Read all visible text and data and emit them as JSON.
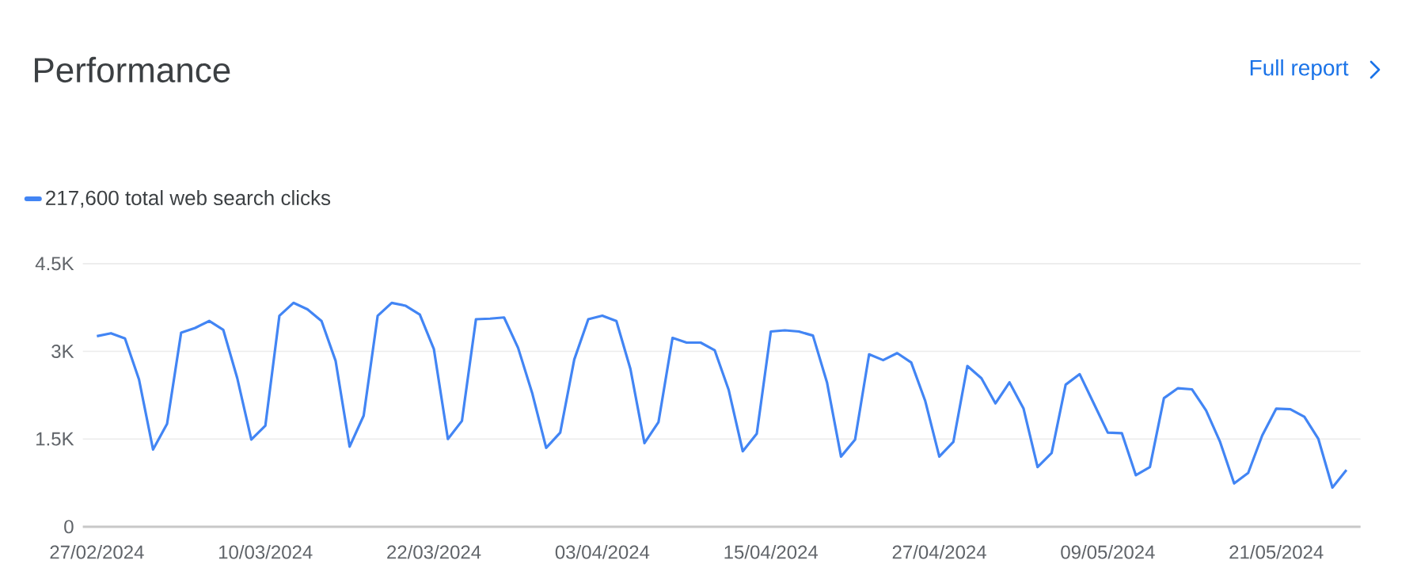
{
  "chart_data": {
    "type": "line",
    "title": "Performance",
    "annotations": [
      "Full report"
    ],
    "x": [
      "2024-02-27",
      "2024-02-28",
      "2024-02-29",
      "2024-03-01",
      "2024-03-02",
      "2024-03-03",
      "2024-03-04",
      "2024-03-05",
      "2024-03-06",
      "2024-03-07",
      "2024-03-08",
      "2024-03-09",
      "2024-03-10",
      "2024-03-11",
      "2024-03-12",
      "2024-03-13",
      "2024-03-14",
      "2024-03-15",
      "2024-03-16",
      "2024-03-17",
      "2024-03-18",
      "2024-03-19",
      "2024-03-20",
      "2024-03-21",
      "2024-03-22",
      "2024-03-23",
      "2024-03-24",
      "2024-03-25",
      "2024-03-26",
      "2024-03-27",
      "2024-03-28",
      "2024-03-29",
      "2024-03-30",
      "2024-03-31",
      "2024-04-01",
      "2024-04-02",
      "2024-04-03",
      "2024-04-04",
      "2024-04-05",
      "2024-04-06",
      "2024-04-07",
      "2024-04-08",
      "2024-04-09",
      "2024-04-10",
      "2024-04-11",
      "2024-04-12",
      "2024-04-13",
      "2024-04-14",
      "2024-04-15",
      "2024-04-16",
      "2024-04-17",
      "2024-04-18",
      "2024-04-19",
      "2024-04-20",
      "2024-04-21",
      "2024-04-22",
      "2024-04-23",
      "2024-04-24",
      "2024-04-25",
      "2024-04-26",
      "2024-04-27",
      "2024-04-28",
      "2024-04-29",
      "2024-04-30",
      "2024-05-01",
      "2024-05-02",
      "2024-05-03",
      "2024-05-04",
      "2024-05-05",
      "2024-05-06",
      "2024-05-07",
      "2024-05-08",
      "2024-05-09",
      "2024-05-10",
      "2024-05-11",
      "2024-05-12",
      "2024-05-13",
      "2024-05-14",
      "2024-05-15",
      "2024-05-16",
      "2024-05-17",
      "2024-05-18",
      "2024-05-19",
      "2024-05-20",
      "2024-05-21",
      "2024-05-22",
      "2024-05-23",
      "2024-05-24",
      "2024-05-25",
      "2024-05-26"
    ],
    "series": [
      {
        "name": "217,600 total web search clicks",
        "color": "#4285f4",
        "values": [
          3260,
          3310,
          3220,
          2520,
          1320,
          1760,
          3320,
          3400,
          3520,
          3370,
          2540,
          1490,
          1730,
          3610,
          3830,
          3720,
          3520,
          2840,
          1370,
          1900,
          3610,
          3830,
          3780,
          3630,
          3040,
          1500,
          1810,
          3550,
          3560,
          3580,
          3060,
          2290,
          1350,
          1610,
          2860,
          3550,
          3610,
          3520,
          2700,
          1430,
          1790,
          3230,
          3150,
          3150,
          3020,
          2340,
          1290,
          1590,
          3340,
          3360,
          3340,
          3270,
          2470,
          1200,
          1490,
          2950,
          2850,
          2970,
          2810,
          2150,
          1200,
          1450,
          2750,
          2540,
          2110,
          2470,
          2020,
          1020,
          1260,
          2430,
          2610,
          2110,
          1610,
          1600,
          880,
          1020,
          2200,
          2370,
          2350,
          1990,
          1450,
          740,
          920,
          1560,
          2020,
          2010,
          1880,
          1500,
          670,
          970
        ]
      }
    ],
    "xlim": [
      "2024-02-26",
      "2024-05-27"
    ],
    "xticks": [
      {
        "value": "2024-02-27",
        "label": "27/02/2024"
      },
      {
        "value": "2024-03-10",
        "label": "10/03/2024"
      },
      {
        "value": "2024-03-22",
        "label": "22/03/2024"
      },
      {
        "value": "2024-04-03",
        "label": "03/04/2024"
      },
      {
        "value": "2024-04-15",
        "label": "15/04/2024"
      },
      {
        "value": "2024-04-27",
        "label": "27/04/2024"
      },
      {
        "value": "2024-05-09",
        "label": "09/05/2024"
      },
      {
        "value": "2024-05-21",
        "label": "21/05/2024"
      }
    ],
    "ylim": [
      0,
      4500
    ],
    "yticks": [
      {
        "value": 0,
        "label": "0"
      },
      {
        "value": 1500,
        "label": "1.5K"
      },
      {
        "value": 3000,
        "label": "3K"
      },
      {
        "value": 4500,
        "label": "4.5K"
      }
    ],
    "grid": "y",
    "legend": "top left"
  }
}
